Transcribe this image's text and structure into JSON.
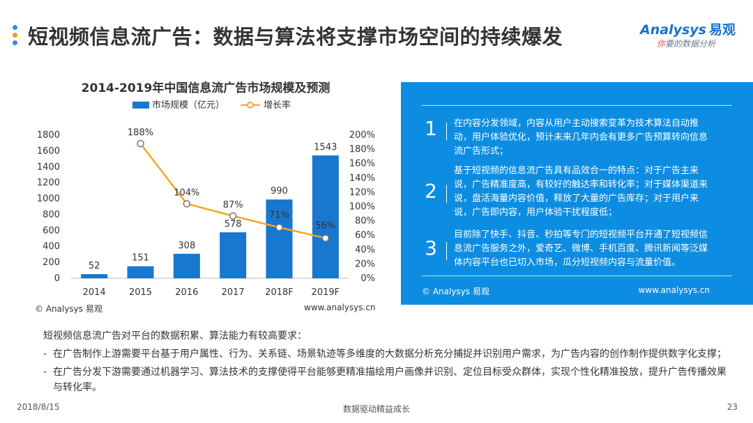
{
  "header": {
    "title": "短视频信息流广告：数据与算法将支撑市场空间的持续爆发",
    "dot_colors": [
      "#2b8fdc",
      "#f39c12",
      "#2b8fdc"
    ],
    "logo_main": "Analysys",
    "logo_zh": "易观",
    "logo_sub_ni": "你",
    "logo_sub_rest": "要的数据分析"
  },
  "chart_data": {
    "type": "bar",
    "title": "2014-2019年中国信息流广告市场规模及预测",
    "categories": [
      "2014",
      "2015",
      "2016",
      "2017",
      "2018F",
      "2019F"
    ],
    "series": [
      {
        "name": "市场规模（亿元）",
        "kind": "bar",
        "axis": "left",
        "color": "#1877cf",
        "values": [
          52,
          151,
          308,
          578,
          990,
          1543
        ],
        "labels": [
          "52",
          "151",
          "308",
          "578",
          "990",
          "1543"
        ]
      },
      {
        "name": "增长率",
        "kind": "line",
        "axis": "right",
        "color": "#f5a623",
        "values": [
          null,
          188,
          104,
          87,
          71,
          56
        ],
        "labels": [
          "",
          "188%",
          "104%",
          "87%",
          "71%",
          "56%"
        ]
      }
    ],
    "y_left": {
      "min": 0,
      "max": 1800,
      "ticks": [
        "0",
        "200",
        "400",
        "600",
        "800",
        "1000",
        "1200",
        "1400",
        "1600",
        "1800"
      ]
    },
    "y_right": {
      "min": 0,
      "max": 200,
      "ticks": [
        "0%",
        "20%",
        "40%",
        "60%",
        "80%",
        "100%",
        "120%",
        "140%",
        "160%",
        "180%",
        "200%"
      ]
    },
    "legend": [
      "市场规模（亿元）",
      "增长率"
    ],
    "legend_position": "top",
    "grid": false
  },
  "chart_source": {
    "left": "© Analysys 易观",
    "right": "www.analysys.cn"
  },
  "panel": {
    "points": [
      {
        "num": "1",
        "text": "在内容分发领域，内容从用户主动搜索变革为技术算法自动推动，用户体验优化，预计未来几年内会有更多广告预算转向信息流广告形式；"
      },
      {
        "num": "2",
        "text": "基于短视频的信息流广告具有品效合一的特点：对于广告主来说，广告精准度高，有较好的触达率和转化率；对于媒体渠道来说，盘活海量内容价值，释放了大量的广告库存；对于用户来说，广告即内容，用户体验干扰程度低；"
      },
      {
        "num": "3",
        "text": "目前除了快手、抖音、秒拍等专门的短视频平台开通了短视频信息流广告服务之外，爱奇艺、微博、手机百度、腾讯新闻等泛媒体内容平台也已切入市场，瓜分短视频内容与流量价值。"
      }
    ],
    "footer_left": "© Analysys 易观",
    "footer_right": "www.analysys.cn"
  },
  "summary": {
    "intro": "短视频信息流广告对平台的数据积累、算法能力有较高要求：",
    "bullets": [
      "在广告制作上游需要平台基于用户属性、行为、关系链、场景轨迹等多维度的大数据分析充分捕捉并识别用户需求，为广告内容的创作制作提供数字化支撑；",
      "在广告分发下游需要通过机器学习、算法技术的支撑使得平台能够更精准描绘用户画像并识别、定位目标受众群体，实现个性化精准投放，提升广告传播效果与转化率。"
    ],
    "dash": "-"
  },
  "footer": {
    "date": "2018/8/15",
    "center": "数据驱动精益成长",
    "page": "23"
  }
}
